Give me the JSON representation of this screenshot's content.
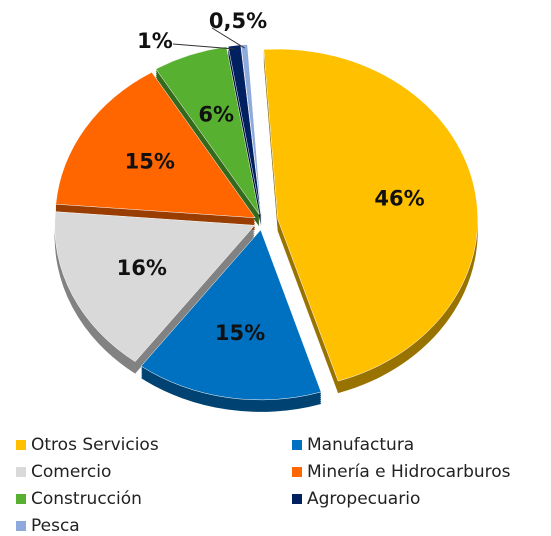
{
  "chart_data": {
    "type": "pie",
    "categories": [
      "Otros Servicios",
      "Manufactura",
      "Comercio",
      "Minería e Hidrocarburos",
      "Construcción",
      "Agropecuario",
      "Pesca"
    ],
    "values": [
      46,
      15,
      16,
      15,
      6,
      1,
      0.5
    ],
    "value_labels": [
      "46%",
      "15%",
      "16%",
      "15%",
      "6%",
      "1%",
      "0,5%"
    ],
    "colors": [
      "#FFC000",
      "#0070C0",
      "#D9D9D9",
      "#FF6600",
      "#58B030",
      "#002060",
      "#8EA9DB"
    ],
    "legend": "bottom"
  }
}
